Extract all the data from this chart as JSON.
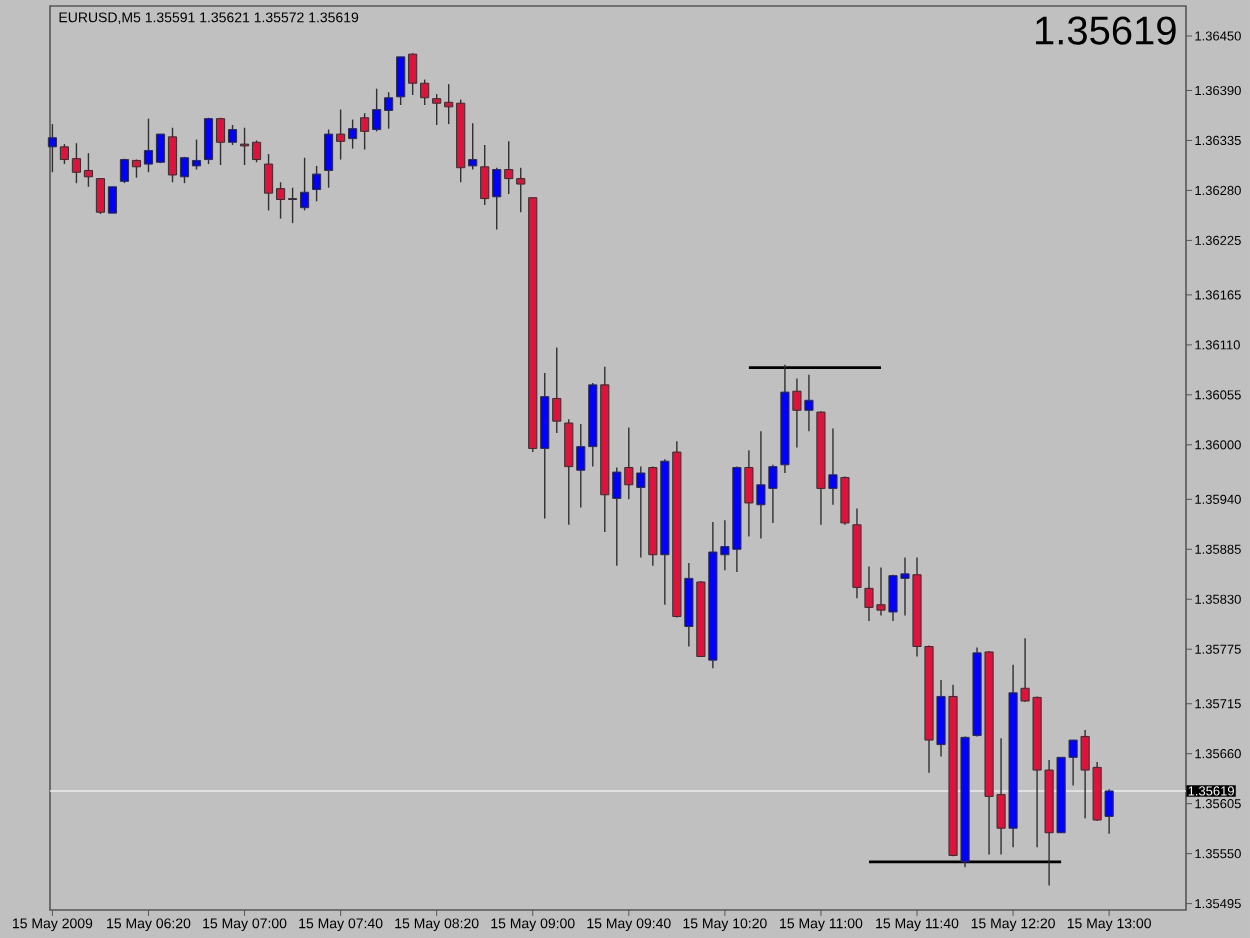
{
  "chart_data": {
    "type": "candlestick",
    "title": "EURUSD,M5 1.35591 1.35621 1.35572 1.35619",
    "annotations": [
      "1.35619"
    ],
    "x": [
      "2009-05-15T05:40",
      "2009-05-15T05:45",
      "2009-05-15T05:50",
      "2009-05-15T05:55",
      "2009-05-15T06:00",
      "2009-05-15T06:05",
      "2009-05-15T06:10",
      "2009-05-15T06:15",
      "2009-05-15T06:20",
      "2009-05-15T06:25",
      "2009-05-15T06:30",
      "2009-05-15T06:35",
      "2009-05-15T06:40",
      "2009-05-15T06:45",
      "2009-05-15T06:50",
      "2009-05-15T06:55",
      "2009-05-15T07:00",
      "2009-05-15T07:05",
      "2009-05-15T07:10",
      "2009-05-15T07:15",
      "2009-05-15T07:20",
      "2009-05-15T07:25",
      "2009-05-15T07:30",
      "2009-05-15T07:35",
      "2009-05-15T07:40",
      "2009-05-15T07:45",
      "2009-05-15T07:50",
      "2009-05-15T07:55",
      "2009-05-15T08:00",
      "2009-05-15T08:05",
      "2009-05-15T08:10",
      "2009-05-15T08:15",
      "2009-05-15T08:20",
      "2009-05-15T08:25",
      "2009-05-15T08:30",
      "2009-05-15T08:35",
      "2009-05-15T08:40",
      "2009-05-15T08:45",
      "2009-05-15T08:50",
      "2009-05-15T08:55",
      "2009-05-15T09:00",
      "2009-05-15T09:05",
      "2009-05-15T09:10",
      "2009-05-15T09:15",
      "2009-05-15T09:20",
      "2009-05-15T09:25",
      "2009-05-15T09:30",
      "2009-05-15T09:35",
      "2009-05-15T09:40",
      "2009-05-15T09:45",
      "2009-05-15T09:50",
      "2009-05-15T09:55",
      "2009-05-15T10:00",
      "2009-05-15T10:05",
      "2009-05-15T10:10",
      "2009-05-15T10:15",
      "2009-05-15T10:20",
      "2009-05-15T10:25",
      "2009-05-15T10:30",
      "2009-05-15T10:35",
      "2009-05-15T10:40",
      "2009-05-15T10:45",
      "2009-05-15T10:50",
      "2009-05-15T10:55",
      "2009-05-15T11:00",
      "2009-05-15T11:05",
      "2009-05-15T11:10",
      "2009-05-15T11:15",
      "2009-05-15T11:20",
      "2009-05-15T11:25",
      "2009-05-15T11:30",
      "2009-05-15T11:35",
      "2009-05-15T11:40",
      "2009-05-15T11:45",
      "2009-05-15T11:50",
      "2009-05-15T11:55",
      "2009-05-15T12:00",
      "2009-05-15T12:05",
      "2009-05-15T12:10",
      "2009-05-15T12:15",
      "2009-05-15T12:20",
      "2009-05-15T12:25",
      "2009-05-15T12:30",
      "2009-05-15T12:35",
      "2009-05-15T12:40",
      "2009-05-15T12:45",
      "2009-05-15T12:50",
      "2009-05-15T12:55",
      "2009-05-15T13:00"
    ],
    "ohlc": [
      [
        1.36328,
        1.36353,
        1.363,
        1.36338
      ],
      [
        1.36328,
        1.36331,
        1.36309,
        1.36314
      ],
      [
        1.36315,
        1.36332,
        1.36288,
        1.363
      ],
      [
        1.36302,
        1.36321,
        1.36284,
        1.36295
      ],
      [
        1.36293,
        1.36293,
        1.36254,
        1.36256
      ],
      [
        1.36255,
        1.36284,
        1.36255,
        1.36284
      ],
      [
        1.3629,
        1.36315,
        1.36288,
        1.36314
      ],
      [
        1.36313,
        1.36314,
        1.36294,
        1.36306
      ],
      [
        1.36309,
        1.36359,
        1.363,
        1.36324
      ],
      [
        1.36311,
        1.36342,
        1.3631,
        1.36342
      ],
      [
        1.36339,
        1.36349,
        1.36289,
        1.36297
      ],
      [
        1.36295,
        1.36317,
        1.36288,
        1.36316
      ],
      [
        1.36307,
        1.36336,
        1.36303,
        1.36313
      ],
      [
        1.36314,
        1.3636,
        1.36309,
        1.36359
      ],
      [
        1.36359,
        1.3636,
        1.36308,
        1.36333
      ],
      [
        1.36333,
        1.36352,
        1.3633,
        1.36347
      ],
      [
        1.36331,
        1.36349,
        1.36308,
        1.36329
      ],
      [
        1.36333,
        1.36335,
        1.36311,
        1.36314
      ],
      [
        1.36309,
        1.3632,
        1.36258,
        1.36277
      ],
      [
        1.36282,
        1.36289,
        1.36249,
        1.3627
      ],
      [
        1.36271,
        1.36283,
        1.36244,
        1.3627
      ],
      [
        1.36261,
        1.36316,
        1.36258,
        1.36278
      ],
      [
        1.36281,
        1.36307,
        1.36268,
        1.36298
      ],
      [
        1.36302,
        1.36347,
        1.36283,
        1.36342
      ],
      [
        1.36342,
        1.36369,
        1.36314,
        1.36334
      ],
      [
        1.36337,
        1.36358,
        1.36326,
        1.36348
      ],
      [
        1.3636,
        1.36365,
        1.36325,
        1.36345
      ],
      [
        1.36347,
        1.36392,
        1.36345,
        1.36369
      ],
      [
        1.36368,
        1.36388,
        1.36348,
        1.36382
      ],
      [
        1.36383,
        1.36427,
        1.36374,
        1.36427
      ],
      [
        1.3643,
        1.36431,
        1.36385,
        1.36398
      ],
      [
        1.36398,
        1.36402,
        1.36374,
        1.36382
      ],
      [
        1.36381,
        1.36386,
        1.36352,
        1.36376
      ],
      [
        1.36377,
        1.36397,
        1.36353,
        1.36372
      ],
      [
        1.36376,
        1.3638,
        1.36289,
        1.36305
      ],
      [
        1.36307,
        1.36354,
        1.36303,
        1.36314
      ],
      [
        1.36306,
        1.3633,
        1.36264,
        1.36271
      ],
      [
        1.36273,
        1.36305,
        1.36237,
        1.36303
      ],
      [
        1.36303,
        1.36334,
        1.36276,
        1.36293
      ],
      [
        1.36293,
        1.36305,
        1.36256,
        1.36287
      ],
      [
        1.36272,
        1.36272,
        1.35992,
        1.35996
      ],
      [
        1.35996,
        1.36079,
        1.35919,
        1.36053
      ],
      [
        1.36051,
        1.36107,
        1.36013,
        1.36026
      ],
      [
        1.36024,
        1.36028,
        1.35912,
        1.35976
      ],
      [
        1.35972,
        1.36023,
        1.35931,
        1.35998
      ],
      [
        1.35998,
        1.36068,
        1.35976,
        1.36066
      ],
      [
        1.36066,
        1.36086,
        1.35904,
        1.35945
      ],
      [
        1.35941,
        1.35975,
        1.35867,
        1.3597
      ],
      [
        1.35975,
        1.36019,
        1.3594,
        1.35956
      ],
      [
        1.35953,
        1.35976,
        1.35876,
        1.35969
      ],
      [
        1.35975,
        1.35976,
        1.35867,
        1.35879
      ],
      [
        1.35879,
        1.35984,
        1.35824,
        1.35982
      ],
      [
        1.35992,
        1.36004,
        1.3581,
        1.35811
      ],
      [
        1.358,
        1.3587,
        1.35778,
        1.35853
      ],
      [
        1.35849,
        1.3585,
        1.35767,
        1.35767
      ],
      [
        1.35763,
        1.35915,
        1.35754,
        1.35882
      ],
      [
        1.35879,
        1.35917,
        1.35862,
        1.35888
      ],
      [
        1.35885,
        1.35976,
        1.3586,
        1.35975
      ],
      [
        1.35975,
        1.35994,
        1.35899,
        1.35936
      ],
      [
        1.35934,
        1.36015,
        1.35897,
        1.35956
      ],
      [
        1.35952,
        1.35978,
        1.35914,
        1.35976
      ],
      [
        1.35978,
        1.36088,
        1.35969,
        1.36058
      ],
      [
        1.36059,
        1.36073,
        1.35997,
        1.36038
      ],
      [
        1.36038,
        1.36077,
        1.36015,
        1.36049
      ],
      [
        1.36036,
        1.36037,
        1.35912,
        1.35952
      ],
      [
        1.35952,
        1.36018,
        1.35934,
        1.35967
      ],
      [
        1.35964,
        1.35965,
        1.35912,
        1.35914
      ],
      [
        1.35912,
        1.3593,
        1.35831,
        1.35843
      ],
      [
        1.35842,
        1.35866,
        1.35806,
        1.35821
      ],
      [
        1.35824,
        1.35865,
        1.35812,
        1.35818
      ],
      [
        1.35816,
        1.35857,
        1.35806,
        1.35856
      ],
      [
        1.35853,
        1.35876,
        1.35812,
        1.35858
      ],
      [
        1.35857,
        1.35876,
        1.35767,
        1.35778
      ],
      [
        1.35778,
        1.35779,
        1.35639,
        1.35675
      ],
      [
        1.3567,
        1.35741,
        1.35657,
        1.35723
      ],
      [
        1.35723,
        1.35736,
        1.35547,
        1.35548
      ],
      [
        1.35541,
        1.35679,
        1.35535,
        1.35678
      ],
      [
        1.3568,
        1.35777,
        1.35679,
        1.35771
      ],
      [
        1.35772,
        1.35773,
        1.35549,
        1.35613
      ],
      [
        1.35615,
        1.35677,
        1.35549,
        1.35578
      ],
      [
        1.35578,
        1.35758,
        1.35557,
        1.35727
      ],
      [
        1.35732,
        1.35787,
        1.35717,
        1.35718
      ],
      [
        1.35722,
        1.35723,
        1.35557,
        1.35642
      ],
      [
        1.35642,
        1.35653,
        1.35515,
        1.35573
      ],
      [
        1.35573,
        1.35656,
        1.35573,
        1.35656
      ],
      [
        1.35656,
        1.35675,
        1.35625,
        1.35675
      ],
      [
        1.35679,
        1.35686,
        1.35589,
        1.35642
      ],
      [
        1.35645,
        1.35651,
        1.35586,
        1.35587
      ],
      [
        1.35591,
        1.35621,
        1.35572,
        1.35619
      ]
    ],
    "colors": [
      "#0000ff",
      "#dc143c",
      "#dc143c",
      "#dc143c",
      "#dc143c",
      "#0000ff",
      "#0000ff",
      "#dc143c",
      "#0000ff",
      "#0000ff",
      "#dc143c",
      "#0000ff",
      "#0000ff",
      "#0000ff",
      "#dc143c",
      "#0000ff",
      "#dc143c",
      "#dc143c",
      "#dc143c",
      "#dc143c",
      "#dc143c",
      "#0000ff",
      "#0000ff",
      "#0000ff",
      "#dc143c",
      "#0000ff",
      "#dc143c",
      "#0000ff",
      "#0000ff",
      "#0000ff",
      "#dc143c",
      "#dc143c",
      "#dc143c",
      "#dc143c",
      "#dc143c",
      "#0000ff",
      "#dc143c",
      "#0000ff",
      "#dc143c",
      "#dc143c",
      "#dc143c",
      "#0000ff",
      "#dc143c",
      "#dc143c",
      "#0000ff",
      "#0000ff",
      "#dc143c",
      "#0000ff",
      "#dc143c",
      "#0000ff",
      "#dc143c",
      "#0000ff",
      "#dc143c",
      "#0000ff",
      "#dc143c",
      "#0000ff",
      "#0000ff",
      "#0000ff",
      "#dc143c",
      "#0000ff",
      "#0000ff",
      "#0000ff",
      "#dc143c",
      "#0000ff",
      "#dc143c",
      "#0000ff",
      "#dc143c",
      "#dc143c",
      "#dc143c",
      "#dc143c",
      "#0000ff",
      "#0000ff",
      "#dc143c",
      "#dc143c",
      "#0000ff",
      "#dc143c",
      "#0000ff",
      "#0000ff",
      "#dc143c",
      "#dc143c",
      "#0000ff",
      "#dc143c",
      "#dc143c",
      "#dc143c",
      "#0000ff",
      "#0000ff",
      "#dc143c",
      "#dc143c",
      "#0000ff"
    ],
    "series": [
      {
        "type": "line",
        "x": [
          "2009-05-15T10:30",
          "2009-05-15T11:25"
        ],
        "values": [
          1.36085,
          1.36085
        ],
        "color": "#000000"
      },
      {
        "type": "line",
        "x": [
          "2009-05-15T11:20",
          "2009-05-15T12:40"
        ],
        "values": [
          1.35541,
          1.35541
        ],
        "color": "#000000"
      }
    ],
    "xlim": [
      "2009-05-15T05:39",
      "2009-05-15T13:32"
    ],
    "xticks": [
      {
        "value": "2009-05-15T05:40",
        "label": "15 May 2009"
      },
      {
        "value": "2009-05-15T06:20",
        "label": "15 May 06:20"
      },
      {
        "value": "2009-05-15T07:00",
        "label": "15 May 07:00"
      },
      {
        "value": "2009-05-15T07:40",
        "label": "15 May 07:40"
      },
      {
        "value": "2009-05-15T08:20",
        "label": "15 May 08:20"
      },
      {
        "value": "2009-05-15T09:00",
        "label": "15 May 09:00"
      },
      {
        "value": "2009-05-15T09:40",
        "label": "15 May 09:40"
      },
      {
        "value": "2009-05-15T10:20",
        "label": "15 May 10:20"
      },
      {
        "value": "2009-05-15T11:00",
        "label": "15 May 11:00"
      },
      {
        "value": "2009-05-15T11:40",
        "label": "15 May 11:40"
      },
      {
        "value": "2009-05-15T12:20",
        "label": "15 May 12:20"
      },
      {
        "value": "2009-05-15T13:00",
        "label": "15 May 13:00"
      }
    ],
    "ylim": [
      1.35488,
      1.36483
    ],
    "yticks": [
      {
        "value": 1.3645,
        "label": "1.36450"
      },
      {
        "value": 1.3639,
        "label": "1.36390"
      },
      {
        "value": 1.36335,
        "label": "1.36335"
      },
      {
        "value": 1.3628,
        "label": "1.36280"
      },
      {
        "value": 1.36225,
        "label": "1.36225"
      },
      {
        "value": 1.36165,
        "label": "1.36165"
      },
      {
        "value": 1.3611,
        "label": "1.36110"
      },
      {
        "value": 1.36055,
        "label": "1.36055"
      },
      {
        "value": 1.36,
        "label": "1.36000"
      },
      {
        "value": 1.3594,
        "label": "1.35940"
      },
      {
        "value": 1.35885,
        "label": "1.35885"
      },
      {
        "value": 1.3583,
        "label": "1.35830"
      },
      {
        "value": 1.35775,
        "label": "1.35775"
      },
      {
        "value": 1.35715,
        "label": "1.35715"
      },
      {
        "value": 1.3566,
        "label": "1.35660"
      },
      {
        "value": 1.35605,
        "label": "1.35605"
      },
      {
        "value": 1.3555,
        "label": "1.35550"
      },
      {
        "value": 1.35495,
        "label": "1.35495"
      }
    ],
    "ref_lines": [
      {
        "axis": "y",
        "value": 1.35619,
        "label": "1.35619",
        "color": "#ececec"
      }
    ]
  }
}
